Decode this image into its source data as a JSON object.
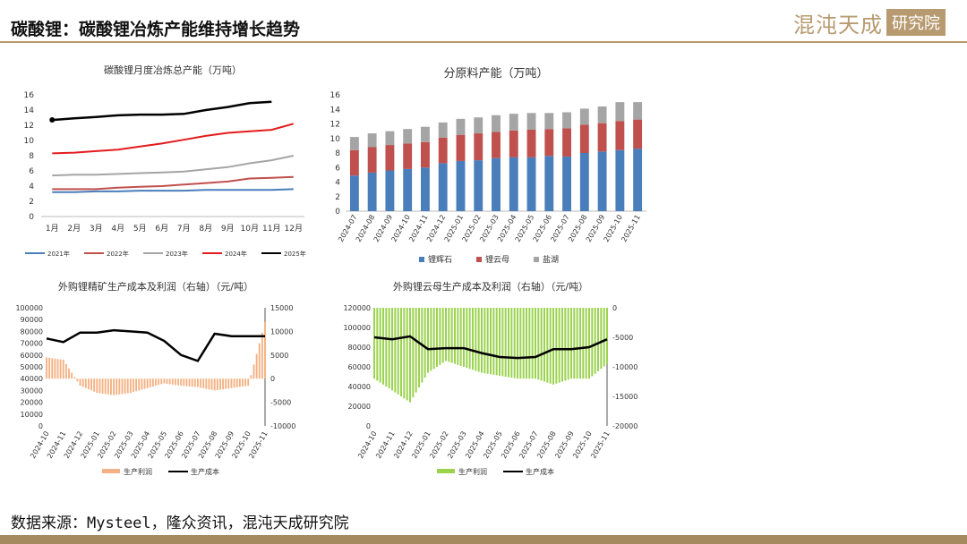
{
  "page": {
    "title": "碳酸锂：碳酸锂冶炼产能维持增长趋势",
    "logo_text": "混沌天成",
    "logo_badge": "研究院",
    "source": "数据来源：Mysteel，隆众资讯，混沌天成研究院"
  },
  "chart_data": [
    {
      "type": "line",
      "title": "碳酸锂月度冶炼总产能（万吨）",
      "categories": [
        "1月",
        "2月",
        "3月",
        "4月",
        "5月",
        "6月",
        "7月",
        "8月",
        "9月",
        "10月",
        "11月",
        "12月"
      ],
      "ylim": [
        0,
        16
      ],
      "yticks": [
        0,
        2,
        4,
        6,
        8,
        10,
        12,
        14,
        16
      ],
      "legend_position": "bottom",
      "series": [
        {
          "name": "2021年",
          "color": "#4a7ebb",
          "values": [
            3.2,
            3.2,
            3.3,
            3.3,
            3.4,
            3.4,
            3.4,
            3.5,
            3.5,
            3.5,
            3.5,
            3.6
          ]
        },
        {
          "name": "2022年",
          "color": "#c0504d",
          "values": [
            3.6,
            3.6,
            3.6,
            3.8,
            3.9,
            4.0,
            4.2,
            4.4,
            4.6,
            5.0,
            5.1,
            5.2
          ]
        },
        {
          "name": "2023年",
          "color": "#a5a5a5",
          "values": [
            5.4,
            5.5,
            5.5,
            5.6,
            5.7,
            5.8,
            5.9,
            6.2,
            6.5,
            7.0,
            7.4,
            8.0
          ]
        },
        {
          "name": "2024年",
          "color": "#e41a1c",
          "values": [
            8.3,
            8.4,
            8.6,
            8.8,
            9.2,
            9.6,
            10.1,
            10.6,
            11.0,
            11.2,
            11.4,
            12.2
          ]
        },
        {
          "name": "2025年",
          "color": "#000000",
          "values": [
            12.7,
            12.9,
            13.1,
            13.3,
            13.4,
            13.4,
            13.5,
            14.0,
            14.4,
            14.9,
            15.1,
            null
          ]
        }
      ]
    },
    {
      "type": "bar",
      "stacked": true,
      "title": "分原料产能（万吨）",
      "categories": [
        "2024-07",
        "2024-08",
        "2024-09",
        "2024-10",
        "2024-11",
        "2024-12",
        "2025-01",
        "2025-02",
        "2025-03",
        "2025-04",
        "2025-05",
        "2025-06",
        "2025-07",
        "2025-08",
        "2025-09",
        "2025-10",
        "2025-11"
      ],
      "ylim": [
        0,
        16
      ],
      "yticks": [
        0,
        2,
        4,
        6,
        8,
        10,
        12,
        14,
        16
      ],
      "legend_position": "bottom",
      "series": [
        {
          "name": "锂辉石",
          "color": "#4a7ebb",
          "values": [
            4.9,
            5.3,
            5.6,
            5.8,
            6.0,
            6.6,
            6.9,
            7.0,
            7.3,
            7.4,
            7.4,
            7.6,
            7.5,
            8.0,
            8.2,
            8.4,
            8.6
          ]
        },
        {
          "name": "锂云母",
          "color": "#c0504d",
          "values": [
            3.5,
            3.5,
            3.5,
            3.5,
            3.5,
            3.5,
            3.6,
            3.7,
            3.6,
            3.7,
            3.8,
            3.7,
            3.9,
            3.9,
            3.9,
            4.0,
            4.0
          ]
        },
        {
          "name": "盐湖",
          "color": "#a5a5a5",
          "values": [
            1.8,
            1.9,
            1.9,
            2.0,
            2.1,
            2.1,
            2.2,
            2.2,
            2.3,
            2.3,
            2.3,
            2.2,
            2.2,
            2.2,
            2.3,
            2.6,
            2.4
          ]
        }
      ]
    },
    {
      "type": "line",
      "title": "外购锂精矿生产成本及利润（右轴）（元/吨）",
      "categories": [
        "2024-10",
        "2024-11",
        "2024-12",
        "2025-01",
        "2025-02",
        "2025-03",
        "2025-04",
        "2025-05",
        "2025-06",
        "2025-07",
        "2025-08",
        "2025-09",
        "2025-10",
        "2025-11"
      ],
      "ylim": [
        0,
        100000
      ],
      "yticks": [
        0,
        10000,
        20000,
        30000,
        40000,
        50000,
        60000,
        70000,
        80000,
        90000,
        100000
      ],
      "y2lim": [
        -10000,
        15000
      ],
      "y2ticks": [
        -10000,
        -5000,
        0,
        5000,
        10000,
        15000
      ],
      "legend_position": "bottom",
      "series": [
        {
          "name": "生产利润",
          "type": "bar",
          "axis": "right",
          "color": "#f4b183",
          "values": [
            4500,
            4000,
            -1500,
            -3000,
            -3500,
            -3000,
            -2000,
            -1000,
            -1500,
            -1800,
            -2500,
            -2000,
            -1500,
            12000
          ]
        },
        {
          "name": "生产成本",
          "type": "line",
          "axis": "left",
          "color": "#000000",
          "values": [
            74000,
            71000,
            79000,
            79000,
            81000,
            80000,
            79000,
            72000,
            60000,
            55000,
            78000,
            76000,
            76000,
            76000
          ]
        }
      ]
    },
    {
      "type": "line",
      "title": "外购锂云母生产成本及利润（右轴）（元/吨）",
      "categories": [
        "2024-10",
        "2024-11",
        "2024-12",
        "2025-01",
        "2025-02",
        "2025-03",
        "2025-04",
        "2025-05",
        "2025-06",
        "2025-07",
        "2025-08",
        "2025-09",
        "2025-10",
        "2025-11"
      ],
      "ylim": [
        0,
        120000
      ],
      "yticks": [
        0,
        20000,
        40000,
        60000,
        80000,
        100000,
        120000
      ],
      "y2lim": [
        -20000,
        0
      ],
      "y2ticks": [
        -20000,
        -15000,
        -10000,
        -5000,
        0
      ],
      "legend_position": "bottom",
      "series": [
        {
          "name": "生产利润",
          "type": "bar",
          "axis": "right",
          "color": "#9bd34f",
          "values": [
            -12000,
            -14000,
            -16000,
            -11000,
            -9000,
            -10000,
            -11000,
            -11500,
            -12000,
            -12000,
            -13000,
            -12000,
            -12000,
            -9500
          ]
        },
        {
          "name": "生产成本",
          "type": "line",
          "axis": "left",
          "color": "#000000",
          "values": [
            90000,
            88000,
            91000,
            78000,
            79000,
            79000,
            74000,
            70000,
            69000,
            70000,
            78000,
            78000,
            80000,
            88000
          ]
        }
      ]
    }
  ]
}
